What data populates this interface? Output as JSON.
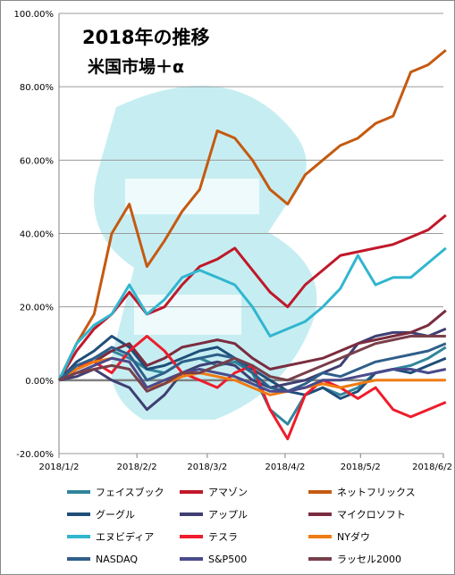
{
  "title_line1": "2018年の推移",
  "title_line2": "米国市場＋α",
  "chart_data": {
    "type": "line",
    "title": "2018年の推移 米国市場＋α",
    "x_ticks": [
      "2018/1/2",
      "2018/2/2",
      "2018/3/2",
      "2018/4/2",
      "2018/5/2",
      "2018/6/2"
    ],
    "x": [
      "2018/1/2",
      "2018/1/9",
      "2018/1/16",
      "2018/1/23",
      "2018/1/30",
      "2018/2/6",
      "2018/2/13",
      "2018/2/20",
      "2018/2/27",
      "2018/3/6",
      "2018/3/13",
      "2018/3/20",
      "2018/3/27",
      "2018/4/3",
      "2018/4/10",
      "2018/4/17",
      "2018/4/24",
      "2018/5/1",
      "2018/5/8",
      "2018/5/15",
      "2018/5/22",
      "2018/5/29",
      "2018/6/5"
    ],
    "ylim": [
      -20,
      100
    ],
    "y_ticks": [
      -20,
      0,
      20,
      40,
      60,
      80,
      100
    ],
    "y_tick_labels": [
      "-20.00%",
      "0.00%",
      "20.00%",
      "40.00%",
      "60.00%",
      "80.00%",
      "100.00%"
    ],
    "grid": "horizontal",
    "legend_position": "bottom",
    "series": [
      {
        "name": "フェイスブック",
        "color": "#31859c",
        "values": [
          0,
          3,
          6,
          8,
          6,
          3,
          2,
          5,
          6,
          4,
          5,
          2,
          -8,
          -12,
          -4,
          -2,
          -4,
          -2,
          2,
          3,
          4,
          6,
          9
        ]
      },
      {
        "name": "アマゾン",
        "color": "#c0182a",
        "values": [
          0,
          8,
          14,
          18,
          24,
          18,
          20,
          26,
          31,
          33,
          36,
          30,
          24,
          20,
          26,
          30,
          34,
          35,
          36,
          37,
          39,
          41,
          45
        ]
      },
      {
        "name": "ネットフリックス",
        "color": "#c55a11",
        "values": [
          0,
          10,
          18,
          40,
          48,
          31,
          38,
          46,
          52,
          68,
          66,
          60,
          52,
          48,
          56,
          60,
          64,
          66,
          70,
          72,
          84,
          86,
          90
        ]
      },
      {
        "name": "グーグル",
        "color": "#1f4e79",
        "values": [
          0,
          5,
          8,
          12,
          9,
          3,
          4,
          6,
          8,
          9,
          6,
          3,
          0,
          -3,
          -4,
          -2,
          -5,
          -3,
          2,
          3,
          2,
          4,
          6
        ]
      },
      {
        "name": "アップル",
        "color": "#3f3f73",
        "values": [
          0,
          1,
          3,
          0,
          -2,
          -8,
          -4,
          2,
          4,
          5,
          4,
          0,
          -2,
          -1,
          0,
          2,
          4,
          10,
          12,
          13,
          13,
          12,
          14
        ]
      },
      {
        "name": "マイクロソフト",
        "color": "#7b2c3f",
        "values": [
          0,
          3,
          5,
          8,
          10,
          4,
          6,
          9,
          10,
          11,
          10,
          6,
          3,
          4,
          5,
          6,
          8,
          10,
          11,
          12,
          13,
          15,
          19
        ]
      },
      {
        "name": "エヌビディア",
        "color": "#31b6cf",
        "values": [
          0,
          10,
          15,
          18,
          26,
          18,
          22,
          28,
          30,
          28,
          26,
          20,
          12,
          14,
          16,
          20,
          25,
          34,
          26,
          28,
          28,
          32,
          36
        ]
      },
      {
        "name": "テスラ",
        "color": "#ee1c2c",
        "values": [
          0,
          4,
          5,
          2,
          8,
          12,
          8,
          2,
          0,
          -2,
          2,
          4,
          -8,
          -16,
          -4,
          0,
          -2,
          -5,
          -2,
          -8,
          -10,
          -8,
          -6
        ]
      },
      {
        "name": "NYダウ",
        "color": "#f07c12",
        "values": [
          0,
          3,
          5,
          6,
          5,
          -2,
          -1,
          1,
          2,
          1,
          0,
          -2,
          -4,
          -3,
          -2,
          -1,
          -2,
          -1,
          0,
          0,
          0,
          0,
          0
        ]
      },
      {
        "name": "NASDAQ",
        "color": "#2f5f8a",
        "values": [
          0,
          4,
          6,
          9,
          7,
          0,
          2,
          5,
          6,
          7,
          6,
          2,
          -2,
          -3,
          -1,
          2,
          1,
          3,
          5,
          6,
          7,
          8,
          10
        ]
      },
      {
        "name": "S&P500",
        "color": "#4a4a8c",
        "values": [
          0,
          2,
          4,
          6,
          5,
          -2,
          0,
          2,
          3,
          2,
          1,
          -1,
          -3,
          -3,
          -2,
          0,
          0,
          1,
          2,
          3,
          3,
          2,
          3
        ]
      },
      {
        "name": "ラッセル2000",
        "color": "#783f4a",
        "values": [
          0,
          2,
          3,
          4,
          3,
          -3,
          -1,
          2,
          2,
          4,
          6,
          4,
          1,
          0,
          2,
          4,
          6,
          8,
          10,
          11,
          12,
          12,
          12
        ]
      }
    ]
  }
}
